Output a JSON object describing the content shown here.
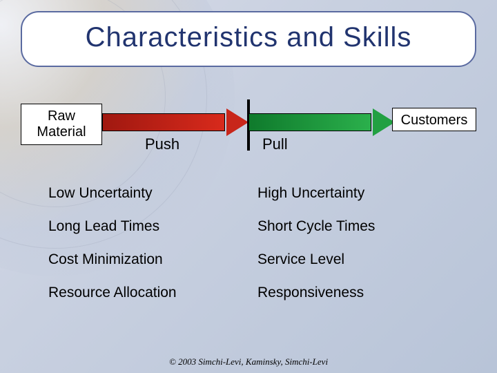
{
  "title": "Characteristics and Skills",
  "title_color": "#21346f",
  "title_fontsize": 40,
  "card_border_color": "#5a6aa0",
  "boxes": {
    "left": "Raw\nMaterial",
    "right": "Customers"
  },
  "arrows": {
    "push": {
      "label": "Push",
      "gradient_from": "#a01810",
      "gradient_to": "#d82a1c",
      "head_color": "#c8261a"
    },
    "pull": {
      "label": "Pull",
      "gradient_from": "#0f7a2c",
      "gradient_to": "#2bb04c",
      "head_color": "#22a042"
    }
  },
  "columns": {
    "left": [
      "Low Uncertainty",
      "Long Lead Times",
      "Cost Minimization",
      "Resource Allocation"
    ],
    "right": [
      "High Uncertainty",
      "Short Cycle Times",
      "Service Level",
      "Responsiveness"
    ]
  },
  "footer": "© 2003 Simchi-Levi, Kaminsky, Simchi-Levi",
  "background_gradient": [
    "#d8dce8",
    "#c8d0e0",
    "#b8c4d8"
  ],
  "body_fontsize": 21,
  "label_fontsize": 22
}
